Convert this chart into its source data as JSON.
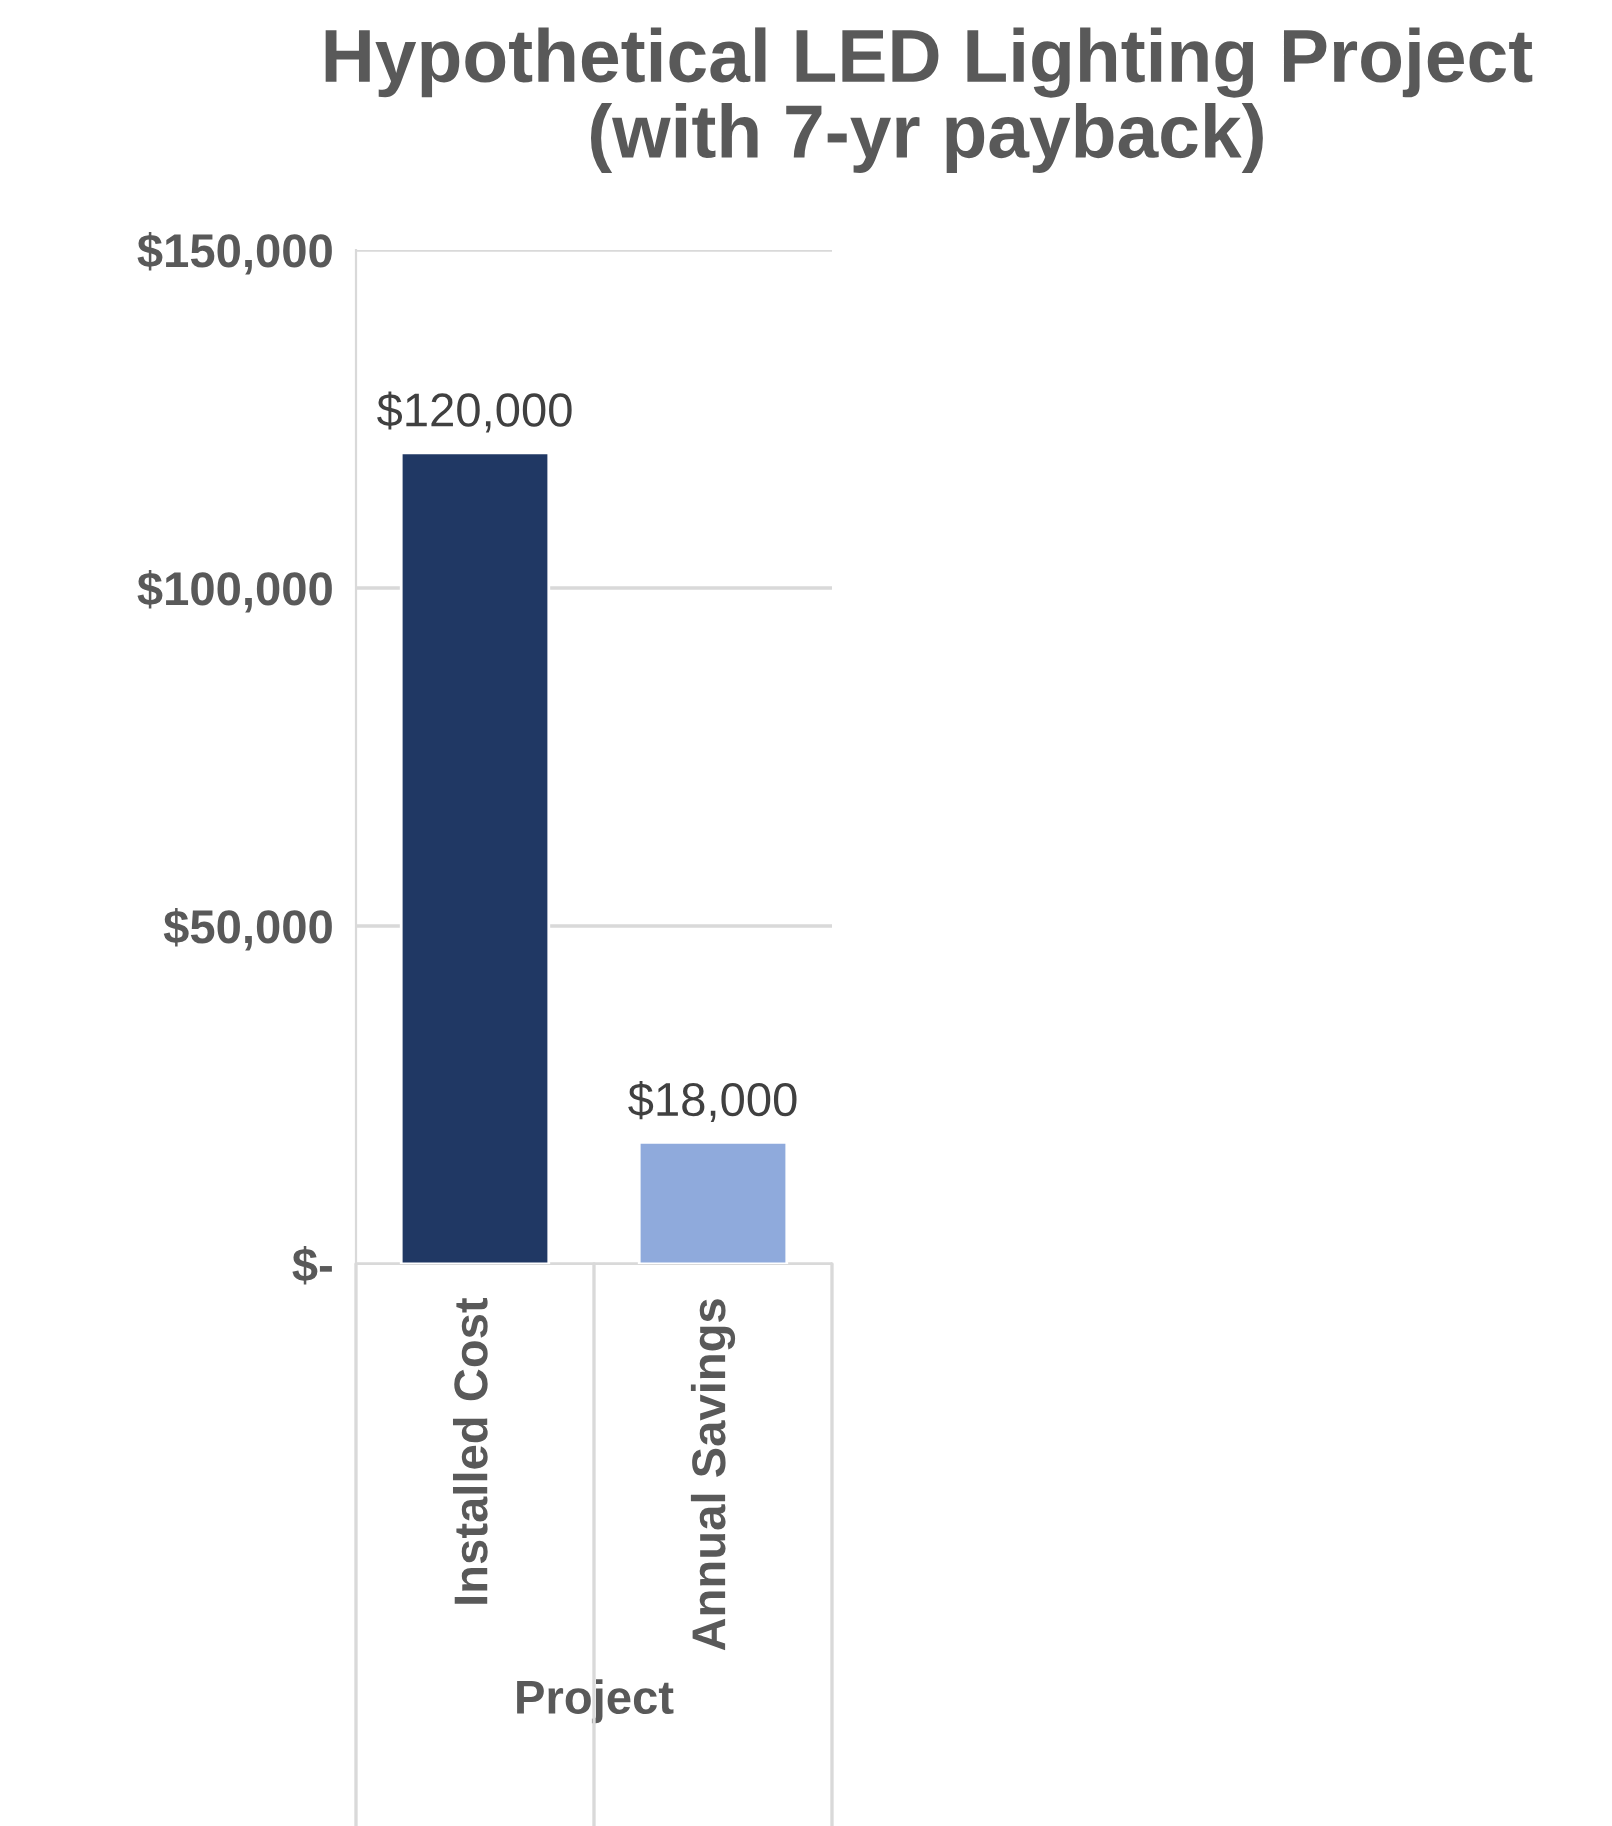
{
  "chart_data": {
    "type": "bar",
    "title": "Hypothetical LED Lighting Project\n(with 7-yr payback)",
    "xlabel": "Project",
    "categories": [
      "Installed Cost",
      "Annual Savings"
    ],
    "values": [
      120000,
      18000
    ],
    "colors": [
      "#203864",
      "#8faadc"
    ],
    "value_labels": [
      "$120,000",
      "$18,000"
    ],
    "ylim": [
      0,
      150000
    ],
    "yticks": [
      {
        "value": 0,
        "label": "$-"
      },
      {
        "value": 50000,
        "label": "$50,000"
      },
      {
        "value": 100000,
        "label": "$100,000"
      },
      {
        "value": 150000,
        "label": "$150,000"
      }
    ],
    "grid": "y",
    "legend": false
  }
}
